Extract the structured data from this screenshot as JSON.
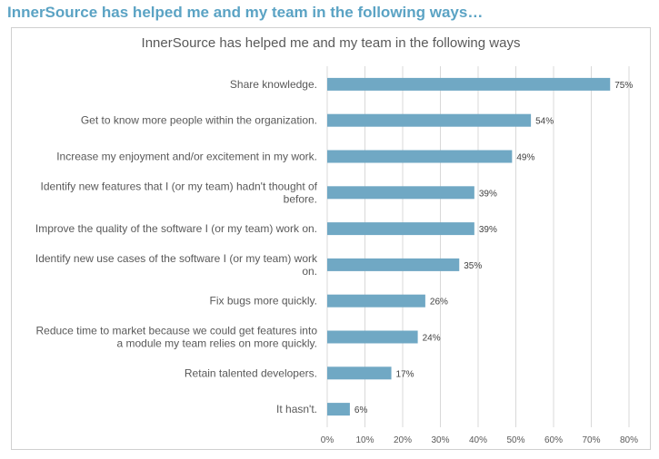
{
  "page": {
    "heading": "InnerSource has helped me and my team in the following ways…"
  },
  "chart_data": {
    "type": "bar",
    "orientation": "horizontal",
    "title": "InnerSource has helped me and my team in the following ways",
    "categories": [
      [
        "Share knowledge."
      ],
      [
        "Get to know more people within the organization."
      ],
      [
        "Increase my enjoyment and/or excitement in my work."
      ],
      [
        "Identify new features that I (or my team) hadn't thought of",
        "before."
      ],
      [
        "Improve the quality of the software I (or my team) work on."
      ],
      [
        "Identify new use cases of the software I (or my team) work",
        "on."
      ],
      [
        "Fix bugs more quickly."
      ],
      [
        "Reduce time to market because we could get features into",
        "a module my team relies on more quickly."
      ],
      [
        "Retain talented developers."
      ],
      [
        "It hasn't."
      ]
    ],
    "values": [
      75,
      54,
      49,
      39,
      39,
      35,
      26,
      24,
      17,
      6
    ],
    "data_labels": [
      "75%",
      "54%",
      "49%",
      "39%",
      "39%",
      "35%",
      "26%",
      "24%",
      "17%",
      "6%"
    ],
    "xlim": [
      0,
      80
    ],
    "x_ticks": [
      "0%",
      "10%",
      "20%",
      "30%",
      "40%",
      "50%",
      "60%",
      "70%",
      "80%"
    ],
    "grid": true,
    "bar_color": "#70a8c4",
    "grid_color": "#d9d9d9"
  }
}
